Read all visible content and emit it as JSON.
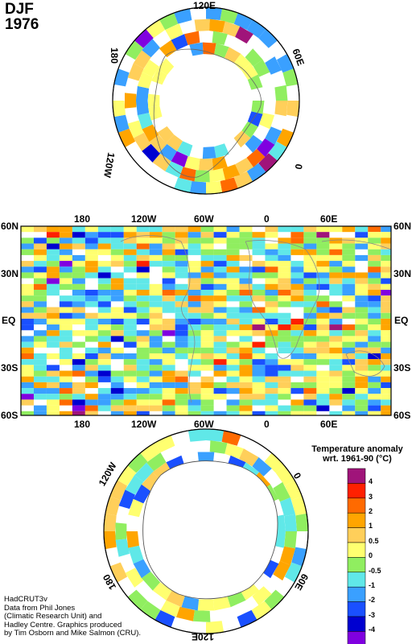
{
  "title": {
    "season": "DJF",
    "year": "1976"
  },
  "north_polar": {
    "labels": {
      "top": "120E",
      "left": "180",
      "upper_right": "60E",
      "right": "0",
      "lower_left": "120W"
    }
  },
  "world_map": {
    "top_lon_labels": [
      "180",
      "120W",
      "60W",
      "0",
      "60E"
    ],
    "bottom_lon_labels": [
      "180",
      "120W",
      "60W",
      "0",
      "60E"
    ],
    "lat_labels_left": [
      "60N",
      "30N",
      "EQ",
      "30S",
      "60S"
    ],
    "lat_labels_right": [
      "60N",
      "30N",
      "EQ",
      "30S",
      "60S"
    ]
  },
  "south_polar": {
    "labels": {
      "upper_left": "120W",
      "right": "0",
      "left": "180",
      "lower_right": "60E",
      "bottom": "120E"
    }
  },
  "legend": {
    "title_line1": "Temperature anomaly",
    "title_line2": "wrt. 1961-90  (°C)",
    "bins": [
      {
        "label": "4",
        "color": "#a0147a"
      },
      {
        "label": "3",
        "color": "#ff2000"
      },
      {
        "label": "2",
        "color": "#ff6a00"
      },
      {
        "label": "1",
        "color": "#ffa500"
      },
      {
        "label": "0.5",
        "color": "#ffcf5a"
      },
      {
        "label": "0",
        "color": "#ffff70"
      },
      {
        "label": "-0.5",
        "color": "#90ee60"
      },
      {
        "label": "-1",
        "color": "#60e8e8"
      },
      {
        "label": "-2",
        "color": "#3aa0ff"
      },
      {
        "label": "-3",
        "color": "#1a50ff"
      },
      {
        "label": "-4",
        "color": "#0000d0"
      },
      {
        "label": "",
        "color": "#8000e0"
      }
    ]
  },
  "credits": {
    "line1": "HadCRUT3v",
    "line2": "Data from Phil Jones",
    "line3": "(Climatic Research Unit) and",
    "line4": "Hadley Centre.  Graphics produced",
    "line5": "by Tim Osborn and Mike Salmon (CRU)."
  }
}
